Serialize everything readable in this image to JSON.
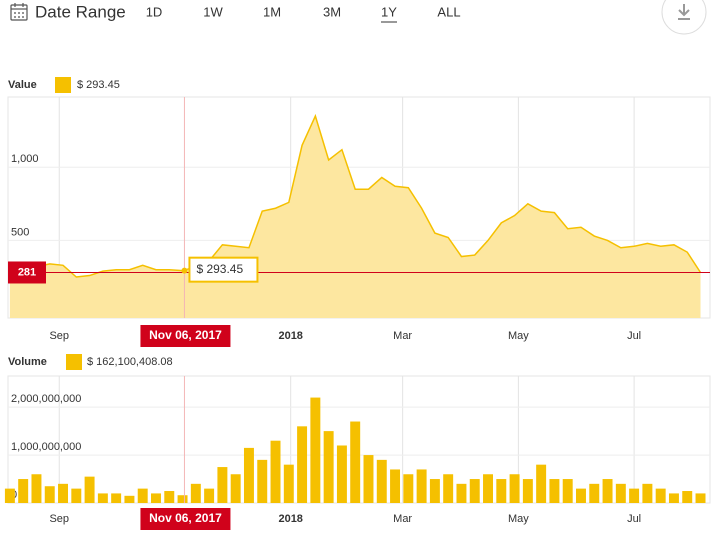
{
  "toolbar": {
    "title": "Date Range",
    "ranges": [
      "1D",
      "1W",
      "1M",
      "3M",
      "1Y",
      "ALL"
    ],
    "selected": "1Y"
  },
  "chart_data": [
    {
      "type": "area",
      "title": "Value",
      "color": "#f5c000",
      "fill": "#fde7a0",
      "x": [
        "2017-08-06",
        "2017-08-13",
        "2017-08-20",
        "2017-08-27",
        "2017-09-03",
        "2017-09-10",
        "2017-09-17",
        "2017-09-24",
        "2017-10-01",
        "2017-10-08",
        "2017-10-15",
        "2017-10-22",
        "2017-10-29",
        "2017-11-05",
        "2017-11-12",
        "2017-11-19",
        "2017-11-26",
        "2017-12-03",
        "2017-12-10",
        "2017-12-17",
        "2017-12-24",
        "2017-12-31",
        "2018-01-07",
        "2018-01-14",
        "2018-01-21",
        "2018-01-28",
        "2018-02-04",
        "2018-02-11",
        "2018-02-18",
        "2018-02-25",
        "2018-03-04",
        "2018-03-11",
        "2018-03-18",
        "2018-03-25",
        "2018-04-01",
        "2018-04-08",
        "2018-04-15",
        "2018-04-22",
        "2018-04-29",
        "2018-05-06",
        "2018-05-13",
        "2018-05-20",
        "2018-05-27",
        "2018-06-03",
        "2018-06-10",
        "2018-06-17",
        "2018-06-24",
        "2018-07-01",
        "2018-07-08",
        "2018-07-15",
        "2018-07-22",
        "2018-07-29",
        "2018-08-05"
      ],
      "values": [
        300,
        300,
        320,
        340,
        330,
        250,
        260,
        290,
        300,
        300,
        330,
        300,
        300,
        293.45,
        320,
        360,
        470,
        460,
        450,
        700,
        720,
        760,
        1150,
        1350,
        1050,
        1120,
        850,
        850,
        930,
        870,
        860,
        720,
        550,
        520,
        390,
        400,
        500,
        620,
        670,
        750,
        700,
        690,
        580,
        590,
        530,
        500,
        450,
        460,
        480,
        460,
        470,
        420,
        281
      ],
      "xlim": [
        "2017-08-05",
        "2018-08-10"
      ],
      "xticks": [
        {
          "value": "2017-09-01",
          "label": "Sep"
        },
        {
          "value": "2018-01-01",
          "label": "2018"
        },
        {
          "value": "2018-03-01",
          "label": "Mar"
        },
        {
          "value": "2018-05-01",
          "label": "May"
        },
        {
          "value": "2018-07-01",
          "label": "Jul"
        }
      ],
      "ylim": [
        -30,
        1480
      ],
      "yticks": [
        0,
        500,
        {
          "value": 1000,
          "label": "1,000"
        }
      ],
      "grid": true,
      "last_price": 281,
      "last_color": "#d0021b",
      "crosshair": {
        "date": "Nov 06, 2017",
        "value": 293.45,
        "value_label": "$ 293.45"
      },
      "legend_label": "$ 293.45"
    },
    {
      "type": "bar",
      "title": "Volume",
      "color": "#f5c000",
      "x": [
        "2017-08-06",
        "2017-08-13",
        "2017-08-20",
        "2017-08-27",
        "2017-09-03",
        "2017-09-10",
        "2017-09-17",
        "2017-09-24",
        "2017-10-01",
        "2017-10-08",
        "2017-10-15",
        "2017-10-22",
        "2017-10-29",
        "2017-11-05",
        "2017-11-12",
        "2017-11-19",
        "2017-11-26",
        "2017-12-03",
        "2017-12-10",
        "2017-12-17",
        "2017-12-24",
        "2017-12-31",
        "2018-01-07",
        "2018-01-14",
        "2018-01-21",
        "2018-01-28",
        "2018-02-04",
        "2018-02-11",
        "2018-02-18",
        "2018-02-25",
        "2018-03-04",
        "2018-03-11",
        "2018-03-18",
        "2018-03-25",
        "2018-04-01",
        "2018-04-08",
        "2018-04-15",
        "2018-04-22",
        "2018-04-29",
        "2018-05-06",
        "2018-05-13",
        "2018-05-20",
        "2018-05-27",
        "2018-06-03",
        "2018-06-10",
        "2018-06-17",
        "2018-06-24",
        "2018-07-01",
        "2018-07-08",
        "2018-07-15",
        "2018-07-22",
        "2018-07-29",
        "2018-08-05"
      ],
      "values": [
        300000000,
        500000000,
        600000000,
        350000000,
        400000000,
        300000000,
        550000000,
        200000000,
        200000000,
        150000000,
        300000000,
        200000000,
        250000000,
        162100408.08,
        400000000,
        300000000,
        750000000,
        600000000,
        1150000000,
        900000000,
        1300000000,
        800000000,
        1600000000,
        2200000000,
        1500000000,
        1200000000,
        1700000000,
        1000000000,
        900000000,
        700000000,
        600000000,
        700000000,
        500000000,
        600000000,
        400000000,
        500000000,
        600000000,
        500000000,
        600000000,
        500000000,
        800000000,
        500000000,
        500000000,
        300000000,
        400000000,
        500000000,
        400000000,
        300000000,
        400000000,
        300000000,
        200000000,
        250000000,
        200000000
      ],
      "xlim": [
        "2017-08-05",
        "2018-08-10"
      ],
      "xticks": [
        {
          "value": "2017-09-01",
          "label": "Sep"
        },
        {
          "value": "2018-01-01",
          "label": "2018"
        },
        {
          "value": "2018-03-01",
          "label": "Mar"
        },
        {
          "value": "2018-05-01",
          "label": "May"
        },
        {
          "value": "2018-07-01",
          "label": "Jul"
        }
      ],
      "ylim": [
        0,
        2650000000
      ],
      "yticks": [
        0,
        {
          "value": 1000000000,
          "label": "1,000,000,000"
        },
        {
          "value": 2000000000,
          "label": "2,000,000,000"
        }
      ],
      "grid": true,
      "crosshair": {
        "date": "Nov 06, 2017"
      },
      "legend_label": "$ 162,100,408.08"
    }
  ]
}
